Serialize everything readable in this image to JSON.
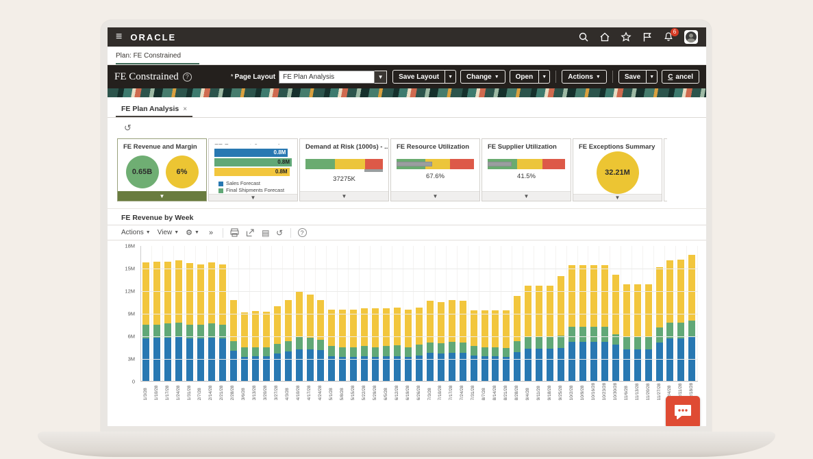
{
  "topbar": {
    "brand": "ORACLE",
    "notification_count": "6",
    "icons": [
      "search",
      "home",
      "favorites",
      "flag",
      "notifications",
      "user"
    ]
  },
  "breadcrumb": {
    "label": "Plan: FE Constrained"
  },
  "plan_header": {
    "title": "FE Constrained",
    "page_layout_label": "Page Layout",
    "page_layout_value": "FE Plan Analysis",
    "buttons": {
      "save_layout": "Save Layout",
      "change": "Change",
      "open": "Open",
      "actions": "Actions",
      "save": "Save",
      "cancel_c": "C",
      "cancel_rest": "ancel"
    }
  },
  "doc_tab": {
    "label": "FE Plan Analysis",
    "close": "×"
  },
  "kpis": {
    "revenue_margin": {
      "title": "FE Revenue and Margin",
      "revenue": "0.65B",
      "margin": "6%"
    },
    "forecast_comparison": {
      "title": "FE Forecast Comparison",
      "bars": [
        {
          "label": "0.8M",
          "color": "#2878b2",
          "width_pct": 95,
          "text": "#ffffff"
        },
        {
          "label": "0.8M",
          "color": "#61a877",
          "width_pct": 100,
          "text": "#222222"
        },
        {
          "label": "0.8M",
          "color": "#f2c63d",
          "width_pct": 97,
          "text": "#222222"
        }
      ],
      "legend": [
        "Sales Forecast",
        "Final Shipments Forecast"
      ],
      "legend_colors": [
        "#2878b2",
        "#61a877"
      ]
    },
    "demand_at_risk": {
      "title": "Demand at Risk (1000s) - ...",
      "value": "37275K",
      "bands_pct": [
        38,
        39,
        23
      ],
      "sub_measure_pct": 24
    },
    "resource_utilization": {
      "title": "FE Resource Utilization",
      "value": "67.6%",
      "bands_pct": [
        37,
        32,
        31
      ],
      "measure_pct": 46
    },
    "supplier_utilization": {
      "title": "FE Supplier Utilization",
      "value": "41.5%",
      "bands_pct": [
        38,
        33,
        29
      ],
      "measure_pct": 31
    },
    "exceptions_summary": {
      "title": "FE Exceptions Summary",
      "value": "32.21M"
    }
  },
  "chart_panel": {
    "title": "FE Revenue by Week",
    "toolbar": {
      "actions": "Actions",
      "view": "View",
      "overflow": "»",
      "help": "?"
    }
  },
  "chart_data": {
    "type": "bar",
    "stacked": true,
    "title": "FE Revenue by Week",
    "xlabel": "",
    "ylabel": "",
    "ylim": [
      0,
      18000000
    ],
    "ytick_labels": [
      "18M",
      "15M",
      "12M",
      "9M",
      "6M",
      "3M",
      "0"
    ],
    "grid": true,
    "legend_position": "none",
    "units": "millions",
    "categories": [
      "1/3/28",
      "1/10/28",
      "1/17/28",
      "1/24/28",
      "1/31/28",
      "2/7/28",
      "2/14/28",
      "2/21/28",
      "2/28/28",
      "3/6/28",
      "3/13/28",
      "3/20/28",
      "3/27/28",
      "4/3/28",
      "4/10/28",
      "4/17/28",
      "4/24/28",
      "5/1/28",
      "5/8/28",
      "5/15/28",
      "5/22/28",
      "5/29/28",
      "6/5/28",
      "6/12/28",
      "6/19/28",
      "6/26/28",
      "7/3/28",
      "7/10/28",
      "7/17/28",
      "7/24/28",
      "7/31/28",
      "8/7/28",
      "8/14/28",
      "8/21/28",
      "8/28/28",
      "9/4/28",
      "9/11/28",
      "9/18/28",
      "9/25/28",
      "10/2/28",
      "10/9/28",
      "10/16/28",
      "10/23/28",
      "10/30/28",
      "11/6/28",
      "11/13/28",
      "11/20/28",
      "11/27/28",
      "12/4/28",
      "12/11/28",
      "12/18/28"
    ],
    "series": [
      {
        "name": "blue",
        "color": "#2878b2",
        "values": [
          5.6,
          5.7,
          5.7,
          5.8,
          5.6,
          5.6,
          5.7,
          5.6,
          4.0,
          3.2,
          3.3,
          3.3,
          3.6,
          3.9,
          4.2,
          4.2,
          4.1,
          3.3,
          3.2,
          3.2,
          3.3,
          3.2,
          3.3,
          3.3,
          3.2,
          3.4,
          3.7,
          3.6,
          3.7,
          3.7,
          3.4,
          3.3,
          3.3,
          3.2,
          3.8,
          4.3,
          4.3,
          4.3,
          4.4,
          5.2,
          5.2,
          5.2,
          5.2,
          4.8,
          4.2,
          4.2,
          4.2,
          5.1,
          5.6,
          5.6,
          5.8
        ]
      },
      {
        "name": "green",
        "color": "#61a877",
        "values": [
          1.9,
          1.8,
          1.9,
          1.9,
          1.9,
          1.9,
          1.9,
          1.9,
          1.3,
          1.3,
          1.2,
          1.2,
          1.3,
          1.4,
          1.6,
          1.5,
          1.4,
          1.3,
          1.3,
          1.3,
          1.3,
          1.3,
          1.3,
          1.4,
          1.3,
          1.4,
          1.4,
          1.4,
          1.5,
          1.4,
          1.2,
          1.2,
          1.2,
          1.2,
          1.5,
          1.6,
          1.6,
          1.6,
          1.6,
          2.0,
          2.0,
          2.0,
          2.0,
          1.4,
          1.7,
          1.7,
          1.7,
          2.0,
          2.1,
          2.1,
          2.2
        ]
      },
      {
        "name": "yellow",
        "color": "#f2c63d",
        "values": [
          8.2,
          8.3,
          8.2,
          8.3,
          8.1,
          8.0,
          8.1,
          8.0,
          5.4,
          4.6,
          4.8,
          4.7,
          5.0,
          5.4,
          6.0,
          5.8,
          5.2,
          4.9,
          5.0,
          5.0,
          5.0,
          5.1,
          5.0,
          5.0,
          5.0,
          4.9,
          5.5,
          5.5,
          5.5,
          5.5,
          4.8,
          4.9,
          4.9,
          5.0,
          6.0,
          6.7,
          6.7,
          6.7,
          7.9,
          8.2,
          8.2,
          8.2,
          8.2,
          7.9,
          6.9,
          6.9,
          6.9,
          8.0,
          8.3,
          8.4,
          8.7
        ]
      }
    ]
  },
  "colors": {
    "selected_tile_strip": "#697c3f",
    "chat_fab": "#df4b33",
    "gauge_green": "#6aab70",
    "gauge_yellow": "#ecc53b",
    "gauge_red": "#dd5948"
  }
}
